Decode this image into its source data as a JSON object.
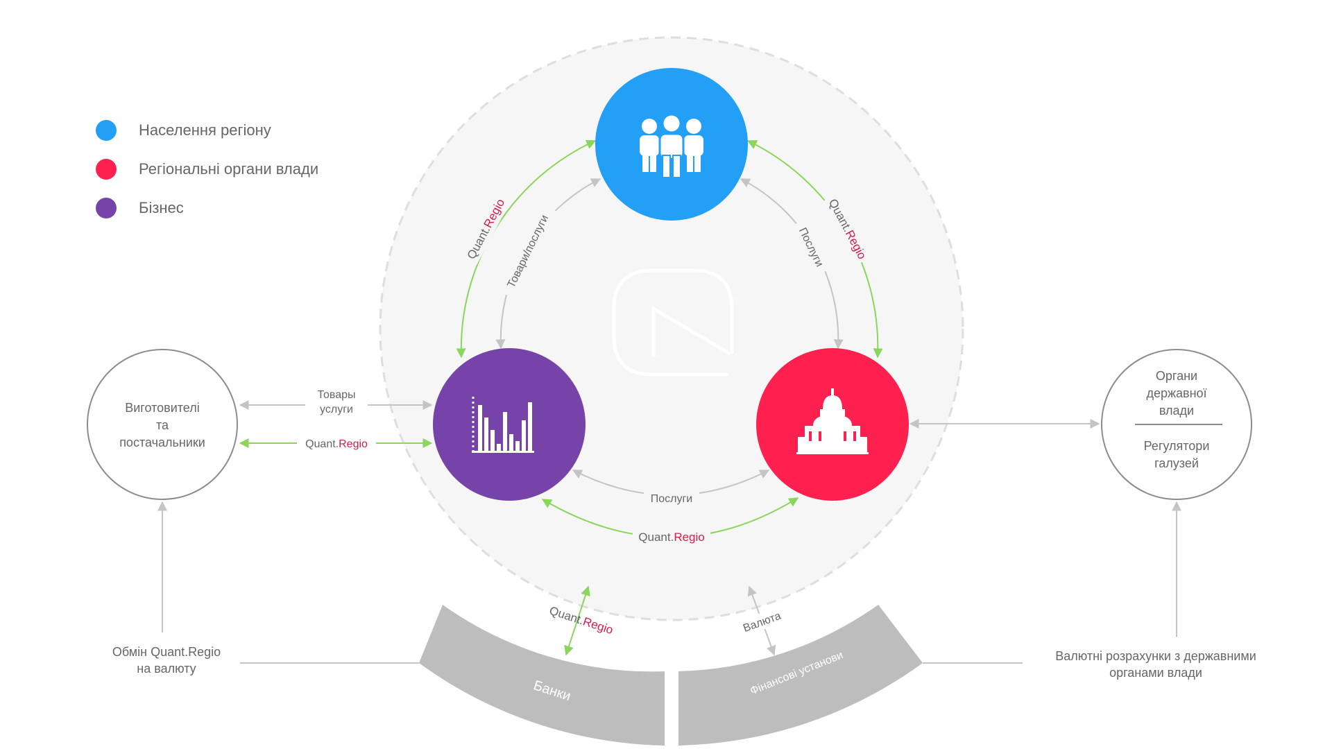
{
  "legend": [
    {
      "label": "Населення регіону",
      "color": "#239ff5"
    },
    {
      "label": "Регіональні органи влади",
      "color": "#fe2150"
    },
    {
      "label": "Бізнес",
      "color": "#7644a8"
    }
  ],
  "colors": {
    "population": "#239ff5",
    "authorities": "#fe2150",
    "business": "#7644a8",
    "green_arrow": "#8ad55c",
    "gray_arrow": "#c4c4c4",
    "regio_accent": "#d81b4b",
    "banks": "#bdbdbd"
  },
  "nodes": {
    "population_icon": "people-icon",
    "business_icon": "bar-chart-icon",
    "authorities_icon": "capitol-building-icon",
    "center_logo": "quant-regio-logo"
  },
  "brand": {
    "quant": "Quant.",
    "regio": "Regio"
  },
  "labels": {
    "goods_services_ua": "Товари/послуги",
    "services_right": "Послуги",
    "services_bottom": "Послуги",
    "manufacturers_l1": "Виготовителі",
    "manufacturers_l2": "та",
    "manufacturers_l3": "постачальники",
    "goods_ru_l1": "Товары",
    "goods_ru_l2": "услуги",
    "state_l1": "Органи",
    "state_l2": "державної",
    "state_l3": "влади",
    "regulators_l1": "Регулятори",
    "regulators_l2": "галузей",
    "exchange_l1": "Обмін Quant.Regio",
    "exchange_l2": "на валюту",
    "fx_l1": "Валютні розрахунки з державними",
    "fx_l2": "органами влади",
    "currency": "Валюта",
    "banks": "Банки",
    "financial": "Фінансові установи"
  }
}
